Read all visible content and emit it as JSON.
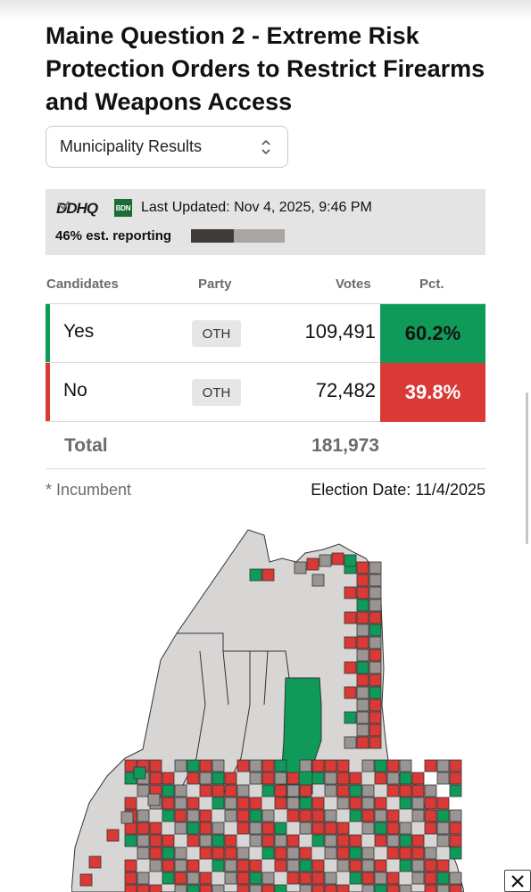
{
  "page": {
    "title": "Maine Question 2 - Extreme Risk Protection Orders to Restrict Firearms and Weapons Access"
  },
  "view_select": {
    "selected": "Municipality Results",
    "icon": "chevron-updown-icon"
  },
  "status": {
    "ddhq_logo": "DDHQ",
    "bdn_logo": "BDN",
    "last_updated": "Last Updated: Nov 4, 2025, 9:46 PM",
    "reporting_label": "46% est. reporting",
    "reporting_fraction": 0.46
  },
  "table": {
    "headers": {
      "candidates": "Candidates",
      "party": "Party",
      "votes": "Votes",
      "pct": "Pct."
    },
    "rows": [
      {
        "candidate": "Yes",
        "party": "OTH",
        "votes": "109,491",
        "pct": "60.2%",
        "color": "#109a5a"
      },
      {
        "candidate": "No",
        "party": "OTH",
        "votes": "72,482",
        "pct": "39.8%",
        "color": "#d93a36"
      }
    ],
    "total": {
      "label": "Total",
      "votes": "181,973"
    }
  },
  "footer": {
    "incumbent_note": "* Incumbent",
    "election_date": "Election Date: 11/4/2025"
  },
  "map": {
    "colors": {
      "yes": "#109a5a",
      "no": "#d93a36",
      "not_reporting": "#9a9592",
      "unincorporated": "#d8d6d4"
    }
  },
  "overlay": {
    "close_icon": "close-icon"
  }
}
